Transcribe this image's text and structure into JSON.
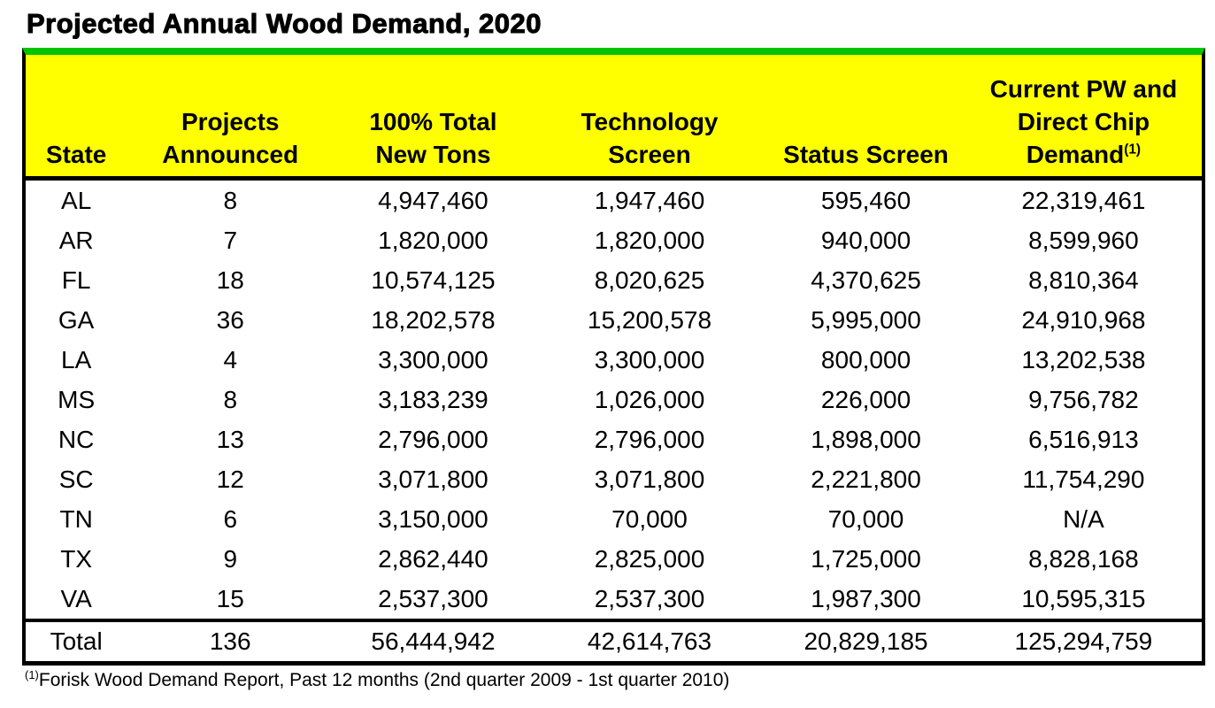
{
  "title": "Projected Annual Wood Demand, 2020",
  "colors": {
    "header_background": "#FFFF00",
    "accent_green_bar": "#00C400",
    "border": "#000000",
    "text": "#000000",
    "page_background": "#FFFFFF"
  },
  "table": {
    "headers": [
      {
        "id": "state",
        "lines": [
          "State"
        ],
        "sup": ""
      },
      {
        "id": "projects-announced",
        "lines": [
          "Projects",
          "Announced"
        ],
        "sup": ""
      },
      {
        "id": "total-new-tons",
        "lines": [
          "100% Total",
          "New Tons"
        ],
        "sup": ""
      },
      {
        "id": "technology-screen",
        "lines": [
          "Technology",
          "Screen"
        ],
        "sup": ""
      },
      {
        "id": "status-screen",
        "lines": [
          "Status Screen"
        ],
        "sup": ""
      },
      {
        "id": "current-pw-demand",
        "lines": [
          "Current PW and",
          "Direct Chip",
          "Demand"
        ],
        "sup": "(1)"
      }
    ],
    "rows": [
      [
        "AL",
        "8",
        "4,947,460",
        "1,947,460",
        "595,460",
        "22,319,461"
      ],
      [
        "AR",
        "7",
        "1,820,000",
        "1,820,000",
        "940,000",
        "8,599,960"
      ],
      [
        "FL",
        "18",
        "10,574,125",
        "8,020,625",
        "4,370,625",
        "8,810,364"
      ],
      [
        "GA",
        "36",
        "18,202,578",
        "15,200,578",
        "5,995,000",
        "24,910,968"
      ],
      [
        "LA",
        "4",
        "3,300,000",
        "3,300,000",
        "800,000",
        "13,202,538"
      ],
      [
        "MS",
        "8",
        "3,183,239",
        "1,026,000",
        "226,000",
        "9,756,782"
      ],
      [
        "NC",
        "13",
        "2,796,000",
        "2,796,000",
        "1,898,000",
        "6,516,913"
      ],
      [
        "SC",
        "12",
        "3,071,800",
        "3,071,800",
        "2,221,800",
        "11,754,290"
      ],
      [
        "TN",
        "6",
        "3,150,000",
        "70,000",
        "70,000",
        "N/A"
      ],
      [
        "TX",
        "9",
        "2,862,440",
        "2,825,000",
        "1,725,000",
        "8,828,168"
      ],
      [
        "VA",
        "15",
        "2,537,300",
        "2,537,300",
        "1,987,300",
        "10,595,315"
      ]
    ],
    "total_row": [
      "Total",
      "136",
      "56,444,942",
      "42,614,763",
      "20,829,185",
      "125,294,759"
    ]
  },
  "footnote": {
    "marker": "(1)",
    "text": "Forisk Wood Demand Report, Past 12 months (2nd quarter 2009 - 1st quarter 2010)"
  },
  "chart_data": {
    "type": "table",
    "title": "Projected Annual Wood Demand, 2020",
    "columns": [
      "State",
      "Projects Announced",
      "100% Total New Tons",
      "Technology Screen",
      "Status Screen",
      "Current PW and Direct Chip Demand (1)"
    ],
    "rows": [
      {
        "state": "AL",
        "projects_announced": 8,
        "total_new_tons": 4947460,
        "technology_screen": 1947460,
        "status_screen": 595460,
        "current_pw_direct_chip_demand": 22319461
      },
      {
        "state": "AR",
        "projects_announced": 7,
        "total_new_tons": 1820000,
        "technology_screen": 1820000,
        "status_screen": 940000,
        "current_pw_direct_chip_demand": 8599960
      },
      {
        "state": "FL",
        "projects_announced": 18,
        "total_new_tons": 10574125,
        "technology_screen": 8020625,
        "status_screen": 4370625,
        "current_pw_direct_chip_demand": 8810364
      },
      {
        "state": "GA",
        "projects_announced": 36,
        "total_new_tons": 18202578,
        "technology_screen": 15200578,
        "status_screen": 5995000,
        "current_pw_direct_chip_demand": 24910968
      },
      {
        "state": "LA",
        "projects_announced": 4,
        "total_new_tons": 3300000,
        "technology_screen": 3300000,
        "status_screen": 800000,
        "current_pw_direct_chip_demand": 13202538
      },
      {
        "state": "MS",
        "projects_announced": 8,
        "total_new_tons": 3183239,
        "technology_screen": 1026000,
        "status_screen": 226000,
        "current_pw_direct_chip_demand": 9756782
      },
      {
        "state": "NC",
        "projects_announced": 13,
        "total_new_tons": 2796000,
        "technology_screen": 2796000,
        "status_screen": 1898000,
        "current_pw_direct_chip_demand": 6516913
      },
      {
        "state": "SC",
        "projects_announced": 12,
        "total_new_tons": 3071800,
        "technology_screen": 3071800,
        "status_screen": 2221800,
        "current_pw_direct_chip_demand": 11754290
      },
      {
        "state": "TN",
        "projects_announced": 6,
        "total_new_tons": 3150000,
        "technology_screen": 70000,
        "status_screen": 70000,
        "current_pw_direct_chip_demand": "N/A"
      },
      {
        "state": "TX",
        "projects_announced": 9,
        "total_new_tons": 2862440,
        "technology_screen": 2825000,
        "status_screen": 1725000,
        "current_pw_direct_chip_demand": 8828168
      },
      {
        "state": "VA",
        "projects_announced": 15,
        "total_new_tons": 2537300,
        "technology_screen": 2537300,
        "status_screen": 1987300,
        "current_pw_direct_chip_demand": 10595315
      }
    ],
    "totals": {
      "state": "Total",
      "projects_announced": 136,
      "total_new_tons": 56444942,
      "technology_screen": 42614763,
      "status_screen": 20829185,
      "current_pw_direct_chip_demand": 125294759
    },
    "footnote": "(1) Forisk Wood Demand Report, Past 12 months (2nd quarter 2009 - 1st quarter 2010)"
  }
}
